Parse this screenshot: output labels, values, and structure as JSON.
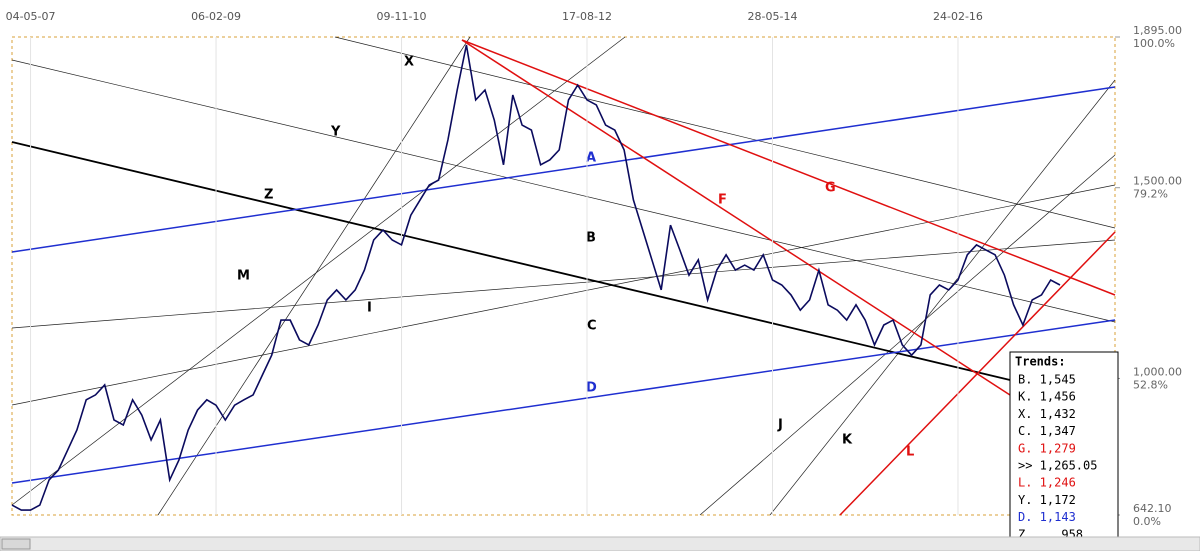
{
  "chart_data": {
    "type": "line",
    "categories": [
      null,
      null,
      "04-05-07",
      null,
      null,
      null,
      null,
      null,
      null,
      null,
      null,
      null,
      null,
      null,
      null,
      null,
      null,
      null,
      null,
      null,
      null,
      null,
      "06-02-09",
      null,
      null,
      null,
      null,
      null,
      null,
      null,
      null,
      null,
      null,
      null,
      null,
      null,
      null,
      null,
      null,
      null,
      null,
      null,
      "09-11-10",
      null,
      null,
      null,
      null,
      null,
      null,
      null,
      null,
      null,
      null,
      null,
      null,
      null,
      null,
      null,
      null,
      null,
      null,
      null,
      "17-08-12",
      null,
      null,
      null,
      null,
      null,
      null,
      null,
      null,
      null,
      null,
      null,
      null,
      null,
      null,
      null,
      null,
      null,
      null,
      null,
      "28-05-14",
      null,
      null,
      null,
      null,
      null,
      null,
      null,
      null,
      null,
      null,
      null,
      null,
      null,
      null,
      null,
      null,
      null,
      null,
      null,
      "24-02-16",
      null,
      null,
      null,
      null,
      null,
      null,
      null,
      null,
      null,
      null,
      null
    ],
    "series": [
      {
        "color": "#0b0b5e",
        "values": [
          668,
          655,
          655,
          668,
          734,
          760,
          812,
          865,
          944,
          957,
          983,
          891,
          878,
          944,
          904,
          839,
          891,
          734,
          786,
          865,
          917,
          944,
          930,
          891,
          930,
          944,
          957,
          1009,
          1061,
          1153,
          1153,
          1101,
          1088,
          1140,
          1206,
          1232,
          1206,
          1232,
          1284,
          1363,
          1389,
          1363,
          1350,
          1428,
          1468,
          1507,
          1520,
          1625,
          1756,
          1874,
          1730,
          1756,
          1677,
          1560,
          1743,
          1664,
          1651,
          1560,
          1573,
          1599,
          1730,
          1769,
          1730,
          1717,
          1664,
          1651,
          1599,
          1468,
          1389,
          1311,
          1232,
          1402,
          1337,
          1271,
          1311,
          1206,
          1284,
          1324,
          1284,
          1297,
          1284,
          1324,
          1258,
          1245,
          1219,
          1179,
          1206,
          1284,
          1193,
          1179,
          1153,
          1193,
          1153,
          1088,
          1140,
          1153,
          1088,
          1061,
          1088,
          1219,
          1245,
          1232,
          1258,
          1324,
          1350,
          1337,
          1324,
          1271,
          1193,
          1140,
          1206,
          1219,
          1258,
          1245
        ]
      }
    ],
    "ylim": [
      642.1,
      1895
    ],
    "yticks": [
      {
        "value": 1895,
        "label": "1,895.00"
      },
      {
        "value": 1500,
        "label": "1,500.00"
      },
      {
        "value": 1000,
        "label": "1,000.00"
      },
      {
        "value": 642.1,
        "label": "642.10"
      }
    ],
    "ytick_percent_labels": [
      "100.0%",
      "79.2%",
      "52.8%",
      "0.0%"
    ],
    "trend_line_labels": [
      {
        "text": "X",
        "color": "#000000"
      },
      {
        "text": "Y",
        "color": "#000000"
      },
      {
        "text": "Z",
        "color": "#000000"
      },
      {
        "text": "M",
        "color": "#000000"
      },
      {
        "text": "I",
        "color": "#000000"
      },
      {
        "text": "A",
        "color": "#1f2fd0"
      },
      {
        "text": "B",
        "color": "#000000"
      },
      {
        "text": "C",
        "color": "#000000"
      },
      {
        "text": "D",
        "color": "#1f2fd0"
      },
      {
        "text": "F",
        "color": "#e01010"
      },
      {
        "text": "G",
        "color": "#e01010"
      },
      {
        "text": "J",
        "color": "#000000"
      },
      {
        "text": "K",
        "color": "#000000"
      },
      {
        "text": "L",
        "color": "#e01010"
      }
    ],
    "trends_box": {
      "title": "Trends:",
      "items": [
        {
          "text": "B. 1,545",
          "color": "#000000"
        },
        {
          "text": "K. 1,456",
          "color": "#000000"
        },
        {
          "text": "X. 1,432",
          "color": "#000000"
        },
        {
          "text": "C. 1,347",
          "color": "#000000"
        },
        {
          "text": "G. 1,279",
          "color": "#e01010"
        },
        {
          "text": ">> 1,265.05",
          "color": "#000000"
        },
        {
          "text": "L. 1,246",
          "color": "#e01010"
        },
        {
          "text": "Y. 1,172",
          "color": "#000000"
        },
        {
          "text": "D. 1,143",
          "color": "#1f2fd0"
        },
        {
          "text": "Z.    958",
          "color": "#000000"
        }
      ]
    }
  }
}
